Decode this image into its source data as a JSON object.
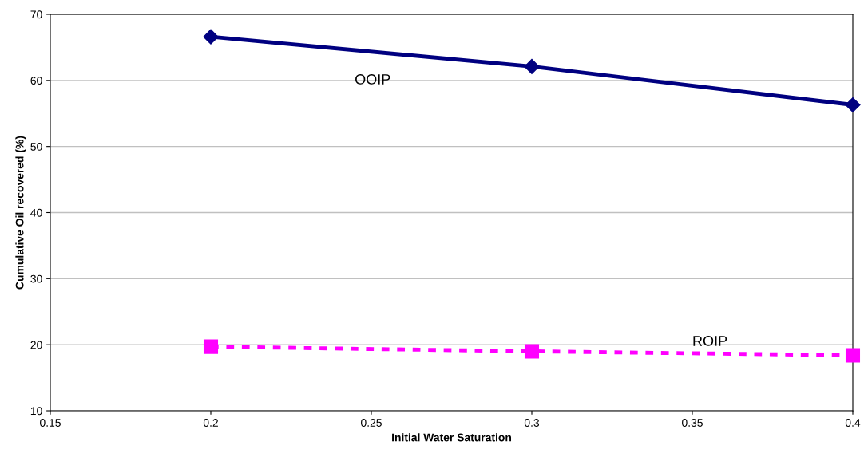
{
  "chart_data": {
    "type": "line",
    "xlabel": "Initial Water Saturation",
    "ylabel": "Cumulative Oil recovered (%)",
    "x": [
      0.2,
      0.3,
      0.4
    ],
    "series": [
      {
        "name": "OOIP",
        "color": "#000080",
        "values": [
          66.6,
          62.1,
          56.3
        ],
        "marker": "diamond",
        "line_style": "solid"
      },
      {
        "name": "ROIP",
        "color": "#ff00ff",
        "values": [
          19.7,
          19.0,
          18.4
        ],
        "marker": "square",
        "line_style": "dashed"
      }
    ],
    "xlim": [
      0.15,
      0.4
    ],
    "xticks": [
      0.15,
      0.2,
      0.25,
      0.3,
      0.35,
      0.4
    ],
    "ylim": [
      10,
      70
    ],
    "yticks": [
      10,
      20,
      30,
      40,
      50,
      60,
      70
    ],
    "grid": "y",
    "legend": false
  }
}
